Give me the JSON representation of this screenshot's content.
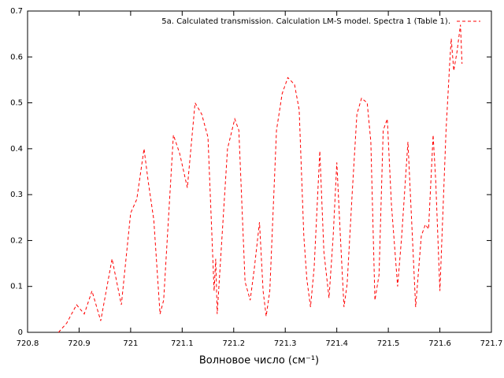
{
  "chart_data": {
    "type": "line",
    "xlabel": "Волновое число (см⁻¹)",
    "x": [
      720.86,
      720.876,
      720.895,
      720.91,
      720.925,
      720.942,
      720.964,
      720.982,
      721.0,
      721.012,
      721.026,
      721.034,
      721.045,
      721.057,
      721.064,
      721.083,
      721.095,
      721.11,
      721.125,
      721.138,
      721.15,
      721.162,
      721.165,
      721.168,
      721.188,
      721.202,
      721.21,
      721.222,
      721.232,
      721.24,
      721.25,
      721.257,
      721.263,
      721.27,
      721.283,
      721.294,
      721.305,
      721.318,
      721.327,
      721.336,
      721.342,
      721.349,
      721.356,
      721.367,
      721.375,
      721.385,
      721.393,
      721.4,
      721.407,
      721.414,
      721.42,
      721.43,
      721.439,
      721.448,
      721.459,
      721.466,
      721.474,
      721.482,
      721.49,
      721.498,
      721.506,
      721.518,
      721.526,
      721.538,
      721.546,
      721.553,
      721.564,
      721.572,
      721.578,
      721.587,
      721.592,
      721.6,
      721.612,
      721.619,
      721.622,
      721.627,
      721.633,
      721.64,
      721.643
    ],
    "series": [
      {
        "name": "5a. Calculated transmission. Calculation LM-S model. Spectra 1 (Table 1).",
        "color": "#ff0000",
        "values": [
          0,
          0.02,
          0.06,
          0.04,
          0.09,
          0.025,
          0.16,
          0.06,
          0.26,
          0.29,
          0.4,
          0.33,
          0.245,
          0.04,
          0.07,
          0.43,
          0.39,
          0.315,
          0.5,
          0.475,
          0.425,
          0.09,
          0.16,
          0.04,
          0.4,
          0.465,
          0.44,
          0.11,
          0.07,
          0.14,
          0.24,
          0.09,
          0.035,
          0.09,
          0.44,
          0.52,
          0.555,
          0.54,
          0.485,
          0.21,
          0.115,
          0.055,
          0.14,
          0.395,
          0.175,
          0.075,
          0.21,
          0.37,
          0.21,
          0.055,
          0.105,
          0.305,
          0.475,
          0.51,
          0.5,
          0.415,
          0.07,
          0.125,
          0.44,
          0.465,
          0.28,
          0.1,
          0.21,
          0.415,
          0.225,
          0.055,
          0.21,
          0.235,
          0.225,
          0.43,
          0.33,
          0.09,
          0.44,
          0.585,
          0.64,
          0.57,
          0.61,
          0.67,
          0.585
        ]
      }
    ],
    "xlim": [
      720.8,
      721.7
    ],
    "xticks": [
      720.8,
      720.9,
      721,
      721.1,
      721.2,
      721.3,
      721.4,
      721.5,
      721.6,
      721.7
    ],
    "ylim": [
      0,
      0.7
    ],
    "yticks": [
      0,
      0.1,
      0.2,
      0.3,
      0.4,
      0.5,
      0.6,
      0.7
    ],
    "legend": "top-right",
    "dashed": true
  }
}
